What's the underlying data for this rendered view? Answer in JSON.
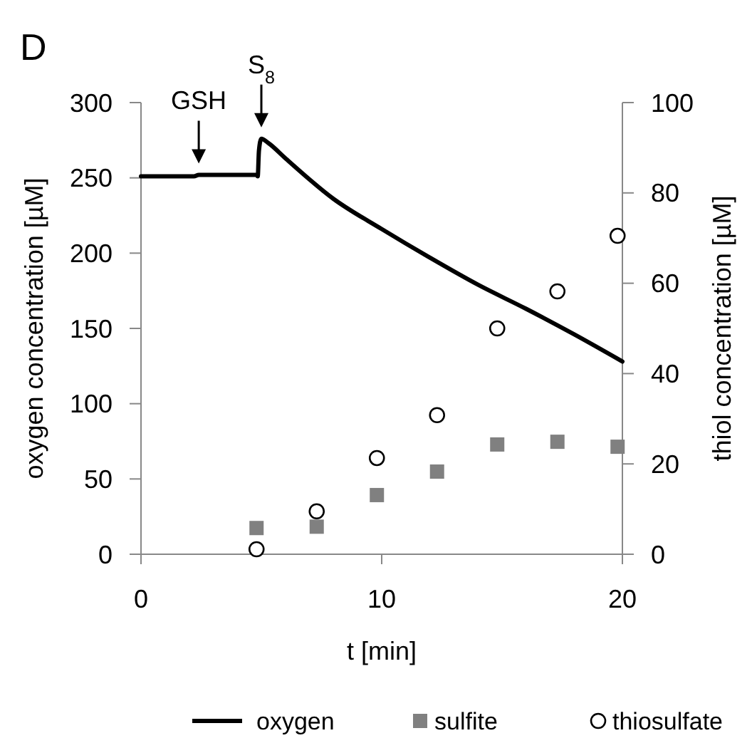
{
  "chart_data": {
    "type": "line",
    "xlabel": "t [min]",
    "ylabel": "oxygen concentration [µM]",
    "y2label": "thiol concentration [µM]",
    "xlim": [
      0,
      20
    ],
    "xticks": [
      0,
      10,
      20
    ],
    "ylim": [
      0,
      300
    ],
    "yticks": [
      0,
      50,
      100,
      150,
      200,
      250,
      300
    ],
    "y2lim": [
      0,
      100
    ],
    "y2ticks": [
      0,
      20,
      40,
      60,
      80,
      100
    ],
    "grid": false,
    "legend": "bottom",
    "annotations": [
      "D",
      {
        "text": "GSH",
        "x": 2.4,
        "y": 252
      },
      {
        "text": "S$_{8}$",
        "x": 5.0,
        "y": 276
      }
    ],
    "series": [
      {
        "name": "oxygen",
        "color": "#000000",
        "marker": "none",
        "line_style": "solid",
        "x": [
          0,
          2.2,
          2.4,
          4.8,
          4.85,
          4.9,
          5.0,
          5.3,
          6,
          8,
          10,
          12,
          14,
          16,
          18,
          20
        ],
        "values": [
          251,
          251,
          252,
          252,
          251,
          268,
          276,
          273,
          263,
          236,
          216,
          197,
          179,
          163,
          146,
          128
        ]
      },
      {
        "name": "sulfite",
        "type": "scatter",
        "axis": "y2",
        "color": "#808080",
        "marker": "square",
        "x": [
          4.8,
          7.3,
          9.8,
          12.3,
          14.8,
          17.3,
          19.8
        ],
        "values": [
          5.8,
          6.1,
          13.1,
          18.3,
          24.3,
          24.9,
          23.8
        ]
      },
      {
        "name": "thiosulfate",
        "type": "scatter",
        "axis": "y2",
        "color": "#000000",
        "marker": "circle",
        "x": [
          4.8,
          7.3,
          9.8,
          12.3,
          14.8,
          17.3,
          19.8
        ],
        "values": [
          1.1,
          9.5,
          21.3,
          30.8,
          50.0,
          58.2,
          70.5
        ]
      }
    ]
  }
}
